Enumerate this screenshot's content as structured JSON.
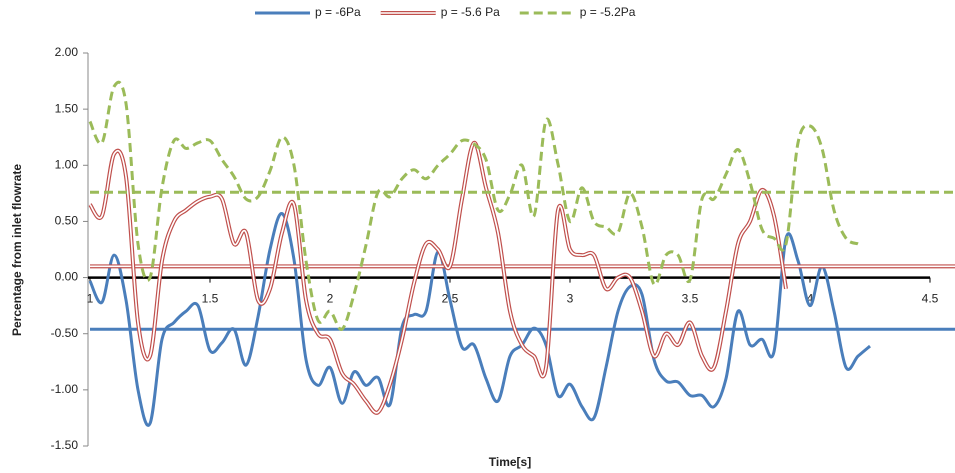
{
  "chart_data": {
    "type": "line",
    "x_label": "Time[s]",
    "y_label": "Percentage from inlet flowrate",
    "xlim": [
      1,
      4.5
    ],
    "xticks": [
      1,
      1.5,
      2,
      2.5,
      3,
      3.5,
      4,
      4.5
    ],
    "ylim": [
      -1.5,
      2
    ],
    "yticks": [
      {
        "value": -1.5,
        "label": "-1.50"
      },
      {
        "value": -1,
        "label": "-1.00"
      },
      {
        "value": -0.5,
        "label": "-0.50"
      },
      {
        "value": 0,
        "label": "0.00"
      },
      {
        "value": 0.5,
        "label": "0.50"
      },
      {
        "value": 1,
        "label": "1.00"
      },
      {
        "value": 1.5,
        "label": "1.50"
      },
      {
        "value": 2,
        "label": "2.00"
      }
    ],
    "grid": false,
    "legend": "top",
    "x": [
      1.0,
      1.05,
      1.1,
      1.15,
      1.2,
      1.25,
      1.3,
      1.35,
      1.4,
      1.45,
      1.5,
      1.55,
      1.6,
      1.65,
      1.7,
      1.75,
      1.8,
      1.85,
      1.9,
      1.95,
      2.0,
      2.05,
      2.1,
      2.15,
      2.2,
      2.25,
      2.3,
      2.35,
      2.4,
      2.45,
      2.5,
      2.55,
      2.6,
      2.65,
      2.7,
      2.75,
      2.8,
      2.85,
      2.9,
      2.95,
      3.0,
      3.05,
      3.1,
      3.15,
      3.2,
      3.25,
      3.3,
      3.35,
      3.4,
      3.45,
      3.5,
      3.55,
      3.6,
      3.65,
      3.7,
      3.75,
      3.8,
      3.85,
      3.9,
      3.95,
      4.0,
      4.05,
      4.1,
      4.15,
      4.2,
      4.25
    ],
    "series": [
      {
        "name": "p = -6Pa",
        "color": "#4a7ebb",
        "style": "solid",
        "mean": -0.46,
        "values": [
          -0.03,
          -0.22,
          0.2,
          -0.2,
          -1.0,
          -1.3,
          -0.55,
          -0.4,
          -0.3,
          -0.25,
          -0.65,
          -0.58,
          -0.46,
          -0.78,
          -0.35,
          0.25,
          0.57,
          0.16,
          -0.73,
          -0.96,
          -0.8,
          -1.12,
          -0.84,
          -0.96,
          -0.89,
          -1.13,
          -0.44,
          -0.33,
          -0.3,
          0.23,
          -0.2,
          -0.62,
          -0.6,
          -0.9,
          -1.1,
          -0.7,
          -0.6,
          -0.45,
          -0.6,
          -1.05,
          -0.95,
          -1.15,
          -1.25,
          -0.8,
          -0.3,
          -0.08,
          -0.15,
          -0.73,
          -0.92,
          -0.93,
          -1.05,
          -1.05,
          -1.15,
          -0.9,
          -0.3,
          -0.6,
          -0.55,
          -0.66,
          0.35,
          0.15,
          -0.25,
          0.1,
          -0.3,
          -0.8,
          -0.7,
          -0.61
        ]
      },
      {
        "name": "p = -5.6 Pa",
        "color": "#c0504d",
        "style": "double",
        "mean": 0.1,
        "values": [
          0.65,
          0.55,
          1.1,
          0.9,
          -0.4,
          -0.7,
          0.15,
          0.5,
          0.6,
          0.68,
          0.72,
          0.7,
          0.3,
          0.4,
          -0.2,
          -0.1,
          0.4,
          0.65,
          -0.2,
          -0.5,
          -0.55,
          -0.85,
          -0.95,
          -1.1,
          -1.2,
          -0.95,
          -0.55,
          -0.05,
          0.3,
          0.25,
          0.1,
          0.7,
          1.2,
          0.8,
          0.4,
          -0.3,
          -0.6,
          -0.7,
          -0.8,
          0.6,
          0.25,
          0.2,
          0.2,
          -0.1,
          0.0,
          0.0,
          -0.3,
          -0.7,
          -0.5,
          -0.6,
          -0.4,
          -0.7,
          -0.8,
          -0.3,
          0.3,
          0.5,
          0.78,
          0.55,
          -0.1,
          null,
          null,
          null,
          null,
          null,
          null,
          null
        ]
      },
      {
        "name": "p = -5.2Pa",
        "color": "#9bbb59",
        "style": "dashed",
        "mean": 0.76,
        "values": [
          1.39,
          1.2,
          1.7,
          1.55,
          0.3,
          0.0,
          0.8,
          1.22,
          1.15,
          1.2,
          1.22,
          1.05,
          0.9,
          0.7,
          0.72,
          0.95,
          1.25,
          1.0,
          0.15,
          -0.38,
          -0.3,
          -0.46,
          -0.15,
          0.29,
          0.76,
          0.72,
          0.88,
          0.96,
          0.88,
          1.0,
          1.1,
          1.22,
          1.19,
          1.05,
          0.6,
          0.74,
          1.0,
          0.55,
          1.4,
          1.01,
          0.5,
          0.8,
          0.5,
          0.45,
          0.4,
          0.75,
          0.45,
          -0.06,
          0.2,
          0.2,
          -0.02,
          0.7,
          0.7,
          0.92,
          1.14,
          0.85,
          0.43,
          0.35,
          0.3,
          1.2,
          1.35,
          1.15,
          0.6,
          0.35,
          0.3,
          null
        ]
      }
    ]
  }
}
